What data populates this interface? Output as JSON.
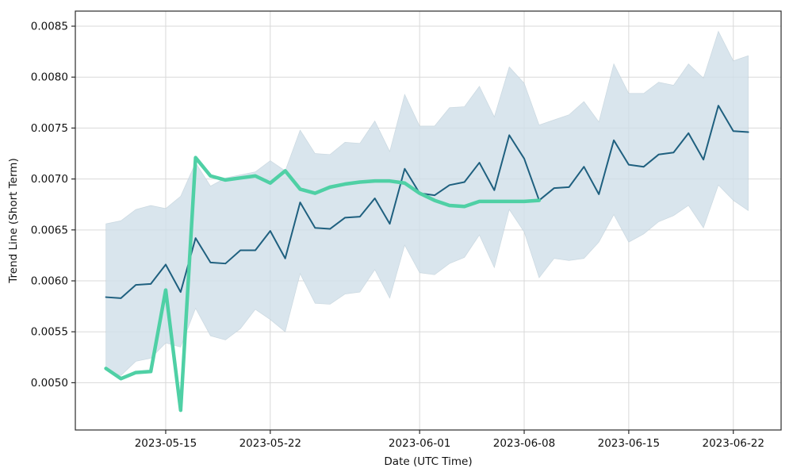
{
  "chart_data": {
    "type": "line",
    "title": "",
    "xlabel": "Date (UTC Time)",
    "ylabel": "Trend Line (Short Term)",
    "legend": "none",
    "x_dates": [
      "2023-05-11",
      "2023-05-12",
      "2023-05-13",
      "2023-05-14",
      "2023-05-15",
      "2023-05-16",
      "2023-05-17",
      "2023-05-18",
      "2023-05-19",
      "2023-05-20",
      "2023-05-21",
      "2023-05-22",
      "2023-05-23",
      "2023-05-24",
      "2023-05-25",
      "2023-05-26",
      "2023-05-27",
      "2023-05-28",
      "2023-05-29",
      "2023-05-30",
      "2023-05-31",
      "2023-06-01",
      "2023-06-02",
      "2023-06-03",
      "2023-06-04",
      "2023-06-05",
      "2023-06-06",
      "2023-06-07",
      "2023-06-08",
      "2023-06-09",
      "2023-06-10",
      "2023-06-11",
      "2023-06-12",
      "2023-06-13",
      "2023-06-14",
      "2023-06-15",
      "2023-06-16",
      "2023-06-17",
      "2023-06-18",
      "2023-06-19",
      "2023-06-20",
      "2023-06-21",
      "2023-06-22",
      "2023-06-23"
    ],
    "band": {
      "name": "confidence-band",
      "color": "#cfdee8",
      "opacity": 0.8,
      "upper": [
        0.00656,
        0.00659,
        0.0067,
        0.00674,
        0.00671,
        0.00683,
        0.00716,
        0.00693,
        0.00701,
        0.00704,
        0.00707,
        0.00718,
        0.00708,
        0.00748,
        0.00725,
        0.00724,
        0.00736,
        0.00735,
        0.00757,
        0.00727,
        0.00783,
        0.00752,
        0.00752,
        0.0077,
        0.00771,
        0.00791,
        0.00761,
        0.0081,
        0.00794,
        0.00753,
        0.00758,
        0.00763,
        0.00776,
        0.00756,
        0.00813,
        0.00784,
        0.00784,
        0.00795,
        0.00792,
        0.00813,
        0.00799,
        0.00845,
        0.00816,
        0.00821
      ],
      "lower": [
        0.00513,
        0.00507,
        0.00521,
        0.00524,
        0.00539,
        0.00535,
        0.00573,
        0.00546,
        0.00542,
        0.00553,
        0.00572,
        0.00562,
        0.0055,
        0.00607,
        0.00578,
        0.00577,
        0.00587,
        0.00589,
        0.00611,
        0.00583,
        0.00635,
        0.00608,
        0.00606,
        0.00617,
        0.00623,
        0.00645,
        0.00613,
        0.0067,
        0.00648,
        0.00603,
        0.00622,
        0.0062,
        0.00622,
        0.00638,
        0.00665,
        0.00638,
        0.00646,
        0.00658,
        0.00664,
        0.00674,
        0.00652,
        0.00694,
        0.00679,
        0.00669
      ]
    },
    "series": [
      {
        "name": "trend-line",
        "color": "#1f607f",
        "width": 2,
        "values": [
          0.00584,
          0.00583,
          0.00596,
          0.00597,
          0.00616,
          0.00589,
          0.00642,
          0.00618,
          0.00617,
          0.0063,
          0.0063,
          0.00649,
          0.00622,
          0.00677,
          0.00652,
          0.00651,
          0.00662,
          0.00663,
          0.00681,
          0.00656,
          0.0071,
          0.00686,
          0.00684,
          0.00694,
          0.00697,
          0.00716,
          0.00689,
          0.00743,
          0.0072,
          0.00679,
          0.00691,
          0.00692,
          0.00712,
          0.00685,
          0.00738,
          0.00714,
          0.00712,
          0.00724,
          0.00726,
          0.00745,
          0.00719,
          0.00772,
          0.00747,
          0.00746
        ]
      },
      {
        "name": "signal-line",
        "color": "#4fd0a5",
        "width": 4.5,
        "values": [
          0.00514,
          0.00504,
          0.0051,
          0.00511,
          0.00591,
          0.00473,
          0.00721,
          0.00703,
          0.00699,
          0.00701,
          0.00703,
          0.00696,
          0.00708,
          0.0069,
          0.00686,
          0.00692,
          0.00695,
          0.00697,
          0.00698,
          0.00698,
          0.00696,
          0.00686,
          0.00679,
          0.00674,
          0.00673,
          0.00678,
          0.00678,
          0.00678,
          0.00678,
          0.00679
        ]
      }
    ],
    "axes": {
      "xlim_index": [
        -2.05,
        45.2
      ],
      "ylim": [
        0.004536,
        0.008648
      ],
      "grid": true,
      "grid_color": "#d9d9d9",
      "spine_color": "#2b2b2b",
      "tick_font_px": 13.5,
      "x_ticks": [
        {
          "index": 4,
          "label": "2023-05-15"
        },
        {
          "index": 11,
          "label": "2023-05-22"
        },
        {
          "index": 21,
          "label": "2023-06-01"
        },
        {
          "index": 28,
          "label": "2023-06-08"
        },
        {
          "index": 35,
          "label": "2023-06-15"
        },
        {
          "index": 42,
          "label": "2023-06-22"
        }
      ],
      "y_ticks": [
        {
          "value": 0.005,
          "label": "0.0050"
        },
        {
          "value": 0.0055,
          "label": "0.0055"
        },
        {
          "value": 0.006,
          "label": "0.0060"
        },
        {
          "value": 0.0065,
          "label": "0.0065"
        },
        {
          "value": 0.007,
          "label": "0.0070"
        },
        {
          "value": 0.0075,
          "label": "0.0075"
        },
        {
          "value": 0.008,
          "label": "0.0080"
        },
        {
          "value": 0.0085,
          "label": "0.0085"
        }
      ]
    }
  }
}
